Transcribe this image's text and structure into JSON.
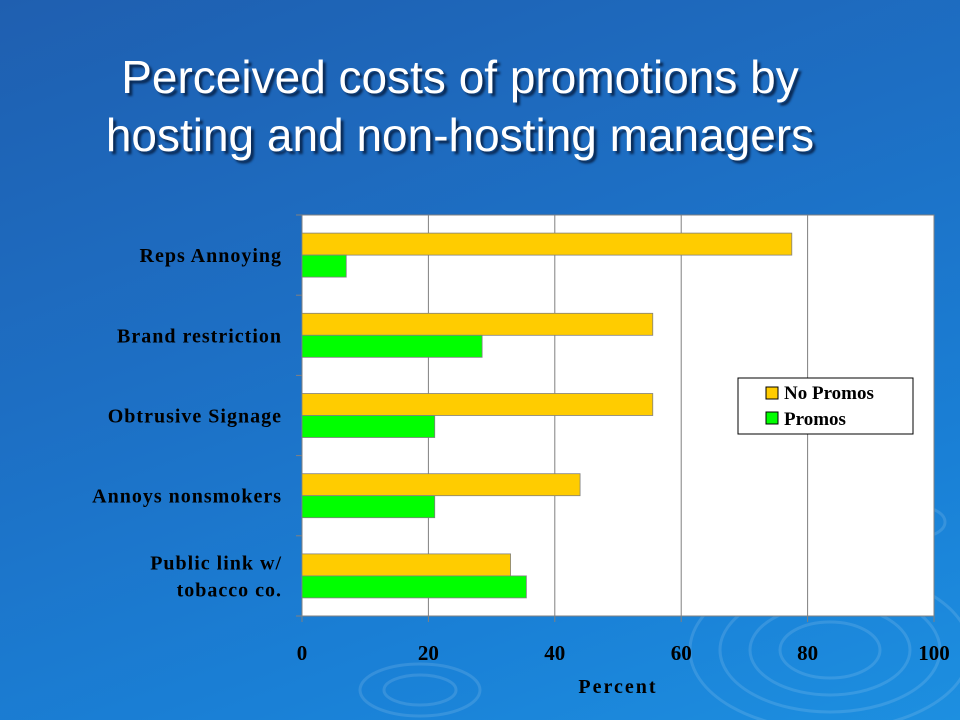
{
  "title": {
    "line1": "Perceived costs of promotions by",
    "line2": "hosting and non-hosting managers"
  },
  "chart_data": {
    "type": "bar",
    "orientation": "horizontal",
    "categories": [
      [
        "Reps Annoying"
      ],
      [
        "Brand restriction"
      ],
      [
        "Obtrusive Signage"
      ],
      [
        "Annoys nonsmokers"
      ],
      [
        "Public link w/",
        "tobacco co."
      ]
    ],
    "series": [
      {
        "name": "No Promos",
        "color": "#ffcc00",
        "values": [
          77.5,
          55.5,
          55.5,
          44,
          33
        ]
      },
      {
        "name": "Promos",
        "color": "#00ff00",
        "values": [
          7,
          28.5,
          21,
          21,
          35.5
        ]
      }
    ],
    "xlabel": "Percent",
    "xlim": [
      0,
      100
    ],
    "xticks": [
      0,
      20,
      40,
      60,
      80,
      100
    ],
    "grid": "vertical",
    "legend_placement": "right-middle",
    "plot_background": "#ffffff"
  }
}
